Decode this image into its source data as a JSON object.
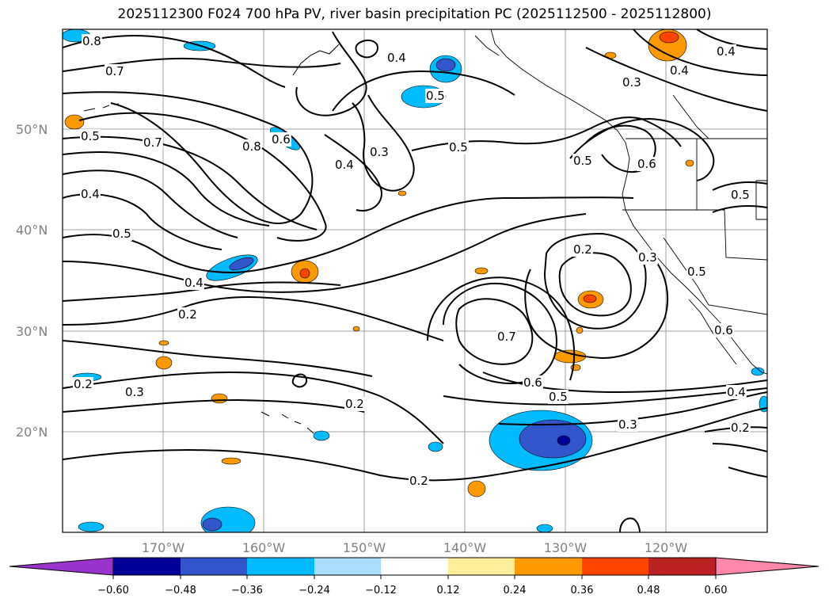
{
  "title": "2025112300 F024 700 hPa PV, river basin precipitation PC (2025112500 - 2025112800)",
  "map": {
    "lat_labels": [
      "50°N",
      "40°N",
      "30°N",
      "20°N"
    ],
    "lon_labels": [
      "170°W",
      "160°W",
      "150°W",
      "140°W",
      "130°W",
      "120°W"
    ],
    "contour_labels": [
      "0.8",
      "0.7",
      "0.5",
      "0.4",
      "0.5",
      "0.7",
      "0.8",
      "0.6",
      "0.4",
      "0.3",
      "0.4",
      "0.5",
      "0.4",
      "0.3",
      "0.4",
      "0.5",
      "0.5",
      "0.6",
      "0.5",
      "0.2",
      "0.3",
      "0.5",
      "0.4",
      "0.2",
      "0.2",
      "0.3",
      "0.2",
      "0.7",
      "0.6",
      "0.5",
      "0.2",
      "0.3",
      "0.4",
      "0.2",
      "0.6"
    ],
    "colors": {
      "contour": "#000000",
      "grid": "#a0a0a0",
      "coast": "#000000"
    }
  },
  "colorbar": {
    "ticks": [
      "−0.60",
      "−0.48",
      "−0.36",
      "−0.24",
      "−0.12",
      "0.12",
      "0.24",
      "0.36",
      "0.48",
      "0.60"
    ],
    "colors": [
      "#9933cc",
      "#000099",
      "#3355cc",
      "#00bbff",
      "#aaddff",
      "#ffffff",
      "#ffee99",
      "#ff9900",
      "#ff4400",
      "#bb2222",
      "#ff88aa"
    ]
  }
}
